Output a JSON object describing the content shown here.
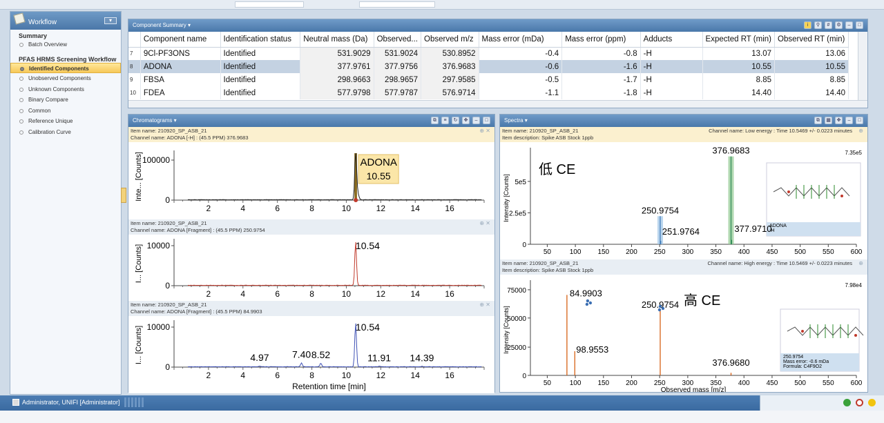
{
  "sidebar": {
    "title": "Workflow",
    "sections": [
      {
        "heading": "Summary",
        "items": [
          {
            "label": "Batch Overview",
            "selected": false
          }
        ]
      },
      {
        "heading": "PFAS HRMS Screening Workflow",
        "items": [
          {
            "label": "Identified Components",
            "selected": true
          },
          {
            "label": "Unobserved Components",
            "selected": false
          },
          {
            "label": "Unknown Components",
            "selected": false
          },
          {
            "label": "Binary Compare",
            "selected": false
          },
          {
            "label": "Common",
            "selected": false
          },
          {
            "label": "Reference Unique",
            "selected": false
          },
          {
            "label": "Calibration Curve",
            "selected": false
          }
        ]
      }
    ]
  },
  "summary": {
    "title": "Component Summary ▾",
    "columns": [
      "Component name",
      "Identification status",
      "Neutral mass (Da)",
      "Observed...",
      "Observed m/z",
      "Mass error (mDa)",
      "Mass error (ppm)",
      "Adducts",
      "Expected RT (min)",
      "Observed RT (min)"
    ],
    "rows": [
      {
        "idx": "7",
        "cells": [
          "9Cl-PF3ONS",
          "Identified",
          "531.9029",
          "531.9024",
          "530.8952",
          "-0.4",
          "-0.8",
          "-H",
          "13.07",
          "13.06"
        ],
        "selected": false
      },
      {
        "idx": "8",
        "cells": [
          "ADONA",
          "Identified",
          "377.9761",
          "377.9756",
          "376.9683",
          "-0.6",
          "-1.6",
          "-H",
          "10.55",
          "10.55"
        ],
        "selected": true
      },
      {
        "idx": "9",
        "cells": [
          "FBSA",
          "Identified",
          "298.9663",
          "298.9657",
          "297.9585",
          "-0.5",
          "-1.7",
          "-H",
          "8.85",
          "8.85"
        ],
        "selected": false
      },
      {
        "idx": "10",
        "cells": [
          "FDEA",
          "Identified",
          "577.9798",
          "577.9787",
          "576.9714",
          "-1.1",
          "-1.8",
          "-H",
          "14.40",
          "14.40"
        ],
        "selected": false
      }
    ]
  },
  "chromatograms": {
    "title": "Chromatograms ▾",
    "x_axis_title": "Retention time [min]",
    "x_ticks": [
      "2",
      "4",
      "6",
      "8",
      "10",
      "12",
      "14",
      "16"
    ],
    "traces": [
      {
        "item": "Item name: 210920_SP_ASB_21",
        "channel": "Channel name: ADONA [-H] : (45.5 PPM) 376.9683",
        "ylabel": "Inte... [Counts]",
        "ytick": "100000",
        "ytick0": "0",
        "color": "#222222",
        "peak_label": "ADONA",
        "peak_sub": "10.55",
        "labels": []
      },
      {
        "item": "Item name: 210920_SP_ASB_21",
        "channel": "Channel name: ADONA [Fragment] : (45.5 PPM) 250.9754",
        "ylabel": "I... [Counts]",
        "ytick": "10000",
        "ytick0": "0",
        "color": "#c0392b",
        "labels": [
          {
            "t": "10.54",
            "x": 10.54,
            "y": 0.95
          }
        ]
      },
      {
        "item": "Item name: 210920_SP_ASB_21",
        "channel": "Channel name: ADONA [Fragment] : (45.5 PPM) 84.9903",
        "ylabel": "I... [Counts]",
        "ytick": "10000",
        "ytick0": "0",
        "color": "#3f51b5",
        "labels": [
          {
            "t": "4.97",
            "x": 4.97,
            "y": 0.05
          },
          {
            "t": "7.40",
            "x": 7.4,
            "y": 0.12
          },
          {
            "t": "8.52",
            "x": 8.52,
            "y": 0.11
          },
          {
            "t": "10.54",
            "x": 10.54,
            "y": 0.95
          },
          {
            "t": "11.91",
            "x": 11.91,
            "y": 0.04
          },
          {
            "t": "14.39",
            "x": 14.39,
            "y": 0.04
          }
        ]
      }
    ]
  },
  "spectra": {
    "title": "Spectra ▾",
    "low": {
      "item": "Item name: 210920_SP_ASB_21",
      "desc": "Item description: Spike ASB Stock 1ppb",
      "channel": "Channel name: Low energy : Time 10.5469 +/- 0.0223 minutes",
      "overlay": "低 CE",
      "maxlabel": "7.35e5",
      "yticks": [
        "5e5",
        "2.5e5",
        "0"
      ],
      "ylabel": "Intensity [Counts]",
      "peaks": [
        {
          "mz": 250.9754,
          "h": 0.32,
          "label": "250.9754"
        },
        {
          "mz": 251.9764,
          "h": 0.04,
          "label": "251.9764"
        },
        {
          "mz": 376.9683,
          "h": 1.0,
          "label": "376.9683"
        },
        {
          "mz": 377.971,
          "h": 0.05,
          "label": "377.9710"
        }
      ],
      "inset": {
        "line1": "ADONA",
        "line2": "-H"
      }
    },
    "high": {
      "item": "Item name: 210920_SP_ASB_21",
      "desc": "Item description: Spike ASB Stock 1ppb",
      "channel": "Channel name: High energy : Time 10.5469 +/- 0.0223 minutes",
      "overlay": "高 CE",
      "maxlabel": "7.98e4",
      "yticks": [
        "75000",
        "50000",
        "25000",
        "0"
      ],
      "ylabel": "Intensity [Counts]",
      "peaks": [
        {
          "mz": 84.9903,
          "h": 0.93,
          "label": "84.9903"
        },
        {
          "mz": 98.9553,
          "h": 0.28,
          "label": "98.9553"
        },
        {
          "mz": 250.9754,
          "h": 0.75,
          "label": "250.9754"
        },
        {
          "mz": 376.968,
          "h": 0.03,
          "label": "376.9680"
        }
      ],
      "inset": {
        "line1": "250.9754",
        "line2": "Mass error: -0.6 mDa",
        "line3": "Formula: C4F9O2"
      }
    },
    "x_ticks": [
      "50",
      "100",
      "150",
      "200",
      "250",
      "300",
      "350",
      "400",
      "450",
      "500",
      "550",
      "600"
    ],
    "x_axis_title": "Observed mass [m/z]"
  },
  "status": {
    "user": "Administrator, UNIFI [Administrator]"
  },
  "colors": {
    "header": "#4a78aa",
    "selected_row": "#c4d2e2",
    "accent": "#f6c85a"
  }
}
